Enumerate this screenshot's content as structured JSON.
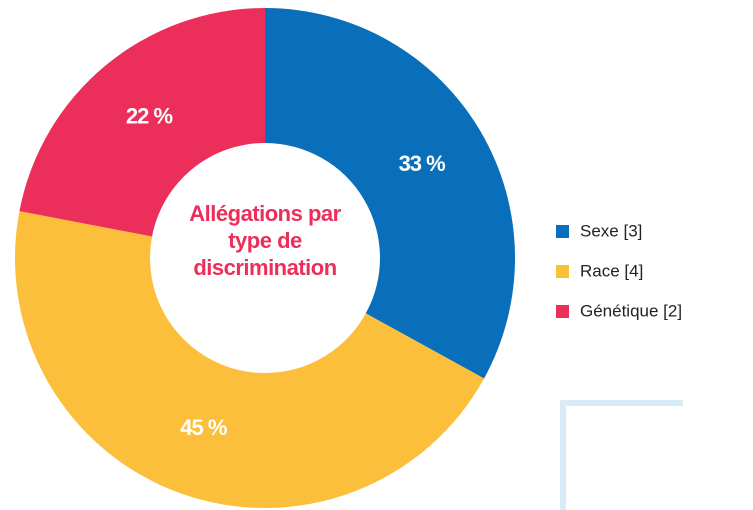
{
  "chart_data": {
    "type": "donut",
    "title": "Allégations par type de discrimination",
    "categories": [
      "Sexe [3]",
      "Race [4]",
      "Génétique [2]"
    ],
    "values": [
      33,
      45,
      22
    ],
    "value_labels": [
      "33 %",
      "45 %",
      "22 %"
    ],
    "colors": [
      "#0a6fba",
      "#fbbf3c",
      "#ec2e5a"
    ],
    "legend": "right"
  }
}
